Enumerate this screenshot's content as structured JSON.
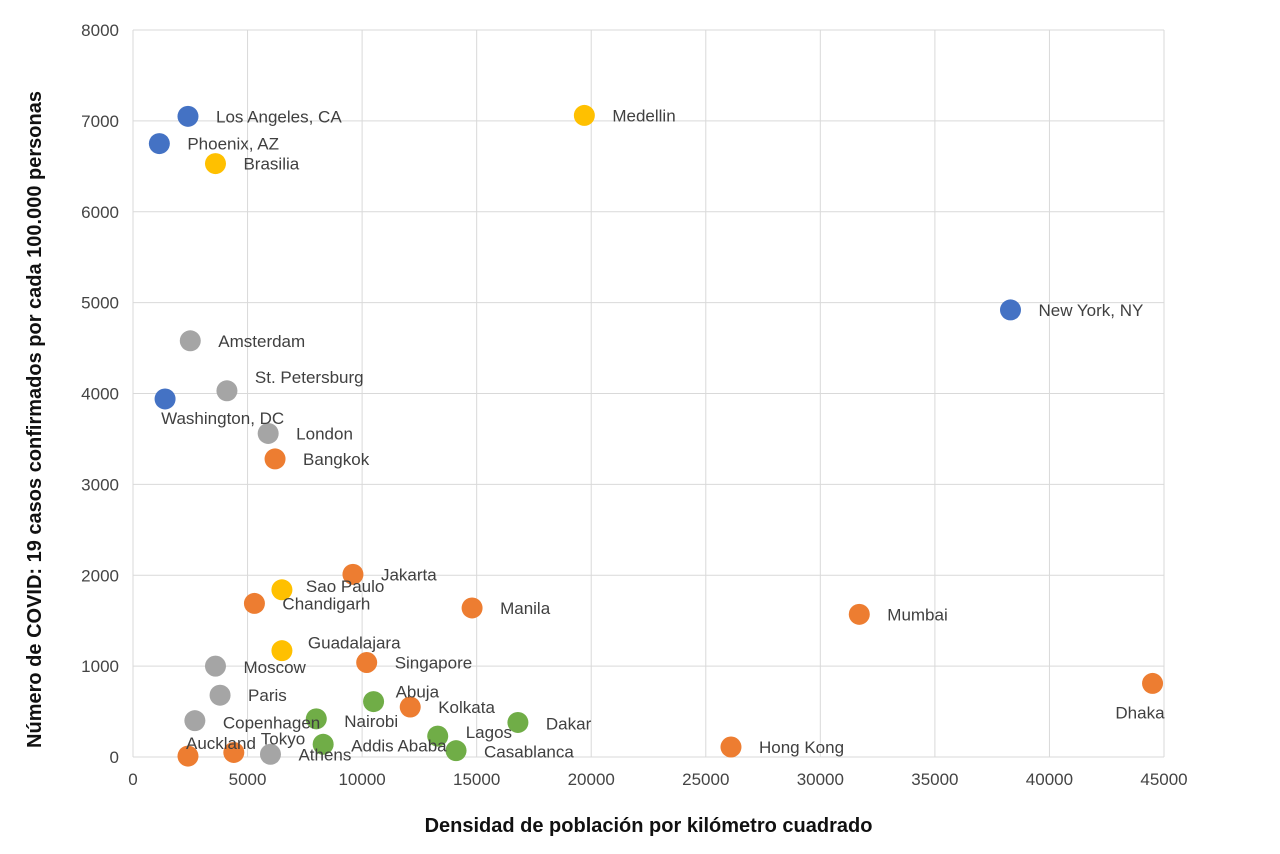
{
  "chart_data": {
    "type": "scatter",
    "title": "",
    "xlabel": "Densidad de población por kilómetro cuadrado",
    "ylabel": "Número de COVID: 19 casos confirmados por cada 100.000 personas",
    "xlim": [
      0,
      45000
    ],
    "ylim": [
      0,
      8000
    ],
    "x_ticks": [
      0,
      5000,
      10000,
      15000,
      20000,
      25000,
      30000,
      35000,
      40000,
      45000
    ],
    "y_ticks": [
      0,
      1000,
      2000,
      3000,
      4000,
      5000,
      6000,
      7000,
      8000
    ],
    "grid": true,
    "legend": "none",
    "colors": {
      "blue": "#4472c4",
      "yellow": "#ffc000",
      "gray": "#a5a5a5",
      "orange": "#ed7d31",
      "green": "#70ad47"
    },
    "points": [
      {
        "label": "Los Angeles, CA",
        "x": 2400,
        "y": 7050,
        "color": "blue"
      },
      {
        "label": "Phoenix, AZ",
        "x": 1150,
        "y": 6750,
        "color": "blue"
      },
      {
        "label": "New York, NY",
        "x": 38300,
        "y": 4920,
        "color": "blue"
      },
      {
        "label": "Washington, DC",
        "x": 1400,
        "y": 3940,
        "color": "blue"
      },
      {
        "label": "Medellin",
        "x": 19700,
        "y": 7060,
        "color": "yellow"
      },
      {
        "label": "Brasilia",
        "x": 3600,
        "y": 6530,
        "color": "yellow"
      },
      {
        "label": "Sao Paulo",
        "x": 6500,
        "y": 1840,
        "color": "yellow"
      },
      {
        "label": "Guadalajara",
        "x": 6500,
        "y": 1170,
        "color": "yellow"
      },
      {
        "label": "Amsterdam",
        "x": 2500,
        "y": 4580,
        "color": "gray"
      },
      {
        "label": "St. Petersburg",
        "x": 4100,
        "y": 4030,
        "color": "gray"
      },
      {
        "label": "London",
        "x": 5900,
        "y": 3560,
        "color": "gray"
      },
      {
        "label": "Moscow",
        "x": 3600,
        "y": 1000,
        "color": "gray"
      },
      {
        "label": "Paris",
        "x": 3800,
        "y": 680,
        "color": "gray"
      },
      {
        "label": "Copenhagen",
        "x": 2700,
        "y": 400,
        "color": "gray"
      },
      {
        "label": "Athens",
        "x": 6000,
        "y": 30,
        "color": "gray"
      },
      {
        "label": "Bangkok",
        "x": 6200,
        "y": 3280,
        "color": "orange"
      },
      {
        "label": "Jakarta",
        "x": 9600,
        "y": 2010,
        "color": "orange"
      },
      {
        "label": "Chandigarh",
        "x": 5300,
        "y": 1690,
        "color": "orange"
      },
      {
        "label": "Manila",
        "x": 14800,
        "y": 1640,
        "color": "orange"
      },
      {
        "label": "Mumbai",
        "x": 31700,
        "y": 1570,
        "color": "orange"
      },
      {
        "label": "Singapore",
        "x": 10200,
        "y": 1040,
        "color": "orange"
      },
      {
        "label": "Kolkata",
        "x": 12100,
        "y": 550,
        "color": "orange"
      },
      {
        "label": "Dhaka",
        "x": 44500,
        "y": 810,
        "color": "orange"
      },
      {
        "label": "Hong Kong",
        "x": 26100,
        "y": 110,
        "color": "orange"
      },
      {
        "label": "Auckland",
        "x": 2400,
        "y": 10,
        "color": "orange"
      },
      {
        "label": "Tokyo",
        "x": 4400,
        "y": 50,
        "color": "orange"
      },
      {
        "label": "Abuja",
        "x": 10500,
        "y": 610,
        "color": "green"
      },
      {
        "label": "Nairobi",
        "x": 8000,
        "y": 420,
        "color": "green"
      },
      {
        "label": "Dakar",
        "x": 16800,
        "y": 380,
        "color": "green"
      },
      {
        "label": "Lagos",
        "x": 13300,
        "y": 230,
        "color": "green"
      },
      {
        "label": "Addis Ababa",
        "x": 8300,
        "y": 140,
        "color": "green"
      },
      {
        "label": "Casablanca",
        "x": 14100,
        "y": 70,
        "color": "green"
      }
    ]
  }
}
